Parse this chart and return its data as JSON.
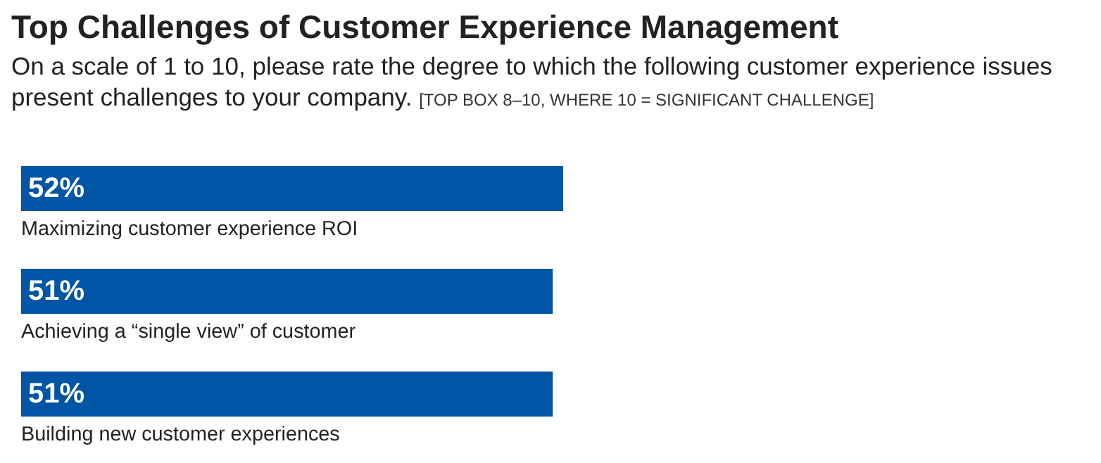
{
  "chart_data": {
    "type": "bar",
    "orientation": "horizontal",
    "title": "Top Challenges of Customer Experience Management",
    "subtitle": "On a scale of 1 to 10, please rate the degree to which the following customer experience issues present challenges to your company.",
    "annotations": [
      "[TOP BOX 8–10, WHERE 10 = SIGNIFICANT CHALLENGE]"
    ],
    "categories": [
      "Maximizing customer experience ROI",
      "Achieving a “single view” of customer",
      "Building new customer experiences"
    ],
    "values": [
      52,
      51,
      51
    ],
    "value_labels": [
      "52%",
      "51%",
      "51%"
    ],
    "color": "#0056a4"
  }
}
